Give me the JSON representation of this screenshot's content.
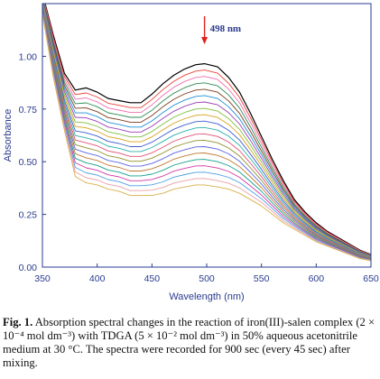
{
  "chart_data": {
    "type": "line",
    "title": "",
    "xlabel": "Wavelength (nm)",
    "ylabel": "Absorbance",
    "xlim": [
      350,
      650
    ],
    "ylim": [
      0,
      1.25
    ],
    "xticks": [
      350,
      400,
      450,
      500,
      550,
      600,
      650
    ],
    "yticks": [
      0.0,
      0.25,
      0.5,
      0.75,
      1.0
    ],
    "xtick_labels": [
      "350",
      "400",
      "450",
      "500",
      "550",
      "600",
      "650"
    ],
    "ytick_labels": [
      "0.00",
      "0.25",
      "0.50",
      "0.75",
      "1.00"
    ],
    "grid": false,
    "legend": "none",
    "annotation": {
      "text": "498 nm",
      "x": 498,
      "arrow": "downward"
    },
    "axis_color": "#2a3b8f",
    "series_count": 20,
    "series_colors": [
      "#000000",
      "#e8413a",
      "#f06fb0",
      "#2e8b57",
      "#7a3b1f",
      "#1e8fd6",
      "#9b3fb5",
      "#7fbf3f",
      "#d9a21a",
      "#3e5ed0",
      "#2ab0b0",
      "#e0507a",
      "#8f8f2a",
      "#5a64e0",
      "#c07a30",
      "#14a08c",
      "#d33aa6",
      "#4ea0e6",
      "#e8a0a8",
      "#d8b04a"
    ],
    "x": [
      350,
      360,
      370,
      380,
      390,
      400,
      410,
      420,
      430,
      440,
      450,
      460,
      470,
      480,
      490,
      498,
      510,
      520,
      530,
      540,
      550,
      560,
      570,
      580,
      590,
      600,
      610,
      620,
      630,
      640,
      650
    ],
    "y_first": [
      1.3,
      1.1,
      0.92,
      0.84,
      0.85,
      0.83,
      0.8,
      0.79,
      0.78,
      0.78,
      0.82,
      0.87,
      0.91,
      0.94,
      0.96,
      0.965,
      0.95,
      0.9,
      0.83,
      0.73,
      0.62,
      0.51,
      0.41,
      0.32,
      0.26,
      0.21,
      0.17,
      0.14,
      0.11,
      0.08,
      0.06
    ],
    "y_last": [
      1.2,
      0.9,
      0.65,
      0.43,
      0.4,
      0.39,
      0.37,
      0.36,
      0.34,
      0.34,
      0.34,
      0.35,
      0.37,
      0.38,
      0.39,
      0.39,
      0.38,
      0.37,
      0.35,
      0.32,
      0.29,
      0.25,
      0.21,
      0.18,
      0.15,
      0.12,
      0.1,
      0.08,
      0.06,
      0.04,
      0.03
    ]
  },
  "caption": {
    "label": "Fig. 1.",
    "text": "Absorption spectral changes in the reaction of iron(III)-salen complex (2 × 10⁻⁴ mol dm⁻³) with TDGA (5 × 10⁻² mol dm⁻³) in 50% aqueous acetonitrile medium at 30 °C. The spectra were recorded for 900 sec (every 45 sec) after mixing."
  }
}
